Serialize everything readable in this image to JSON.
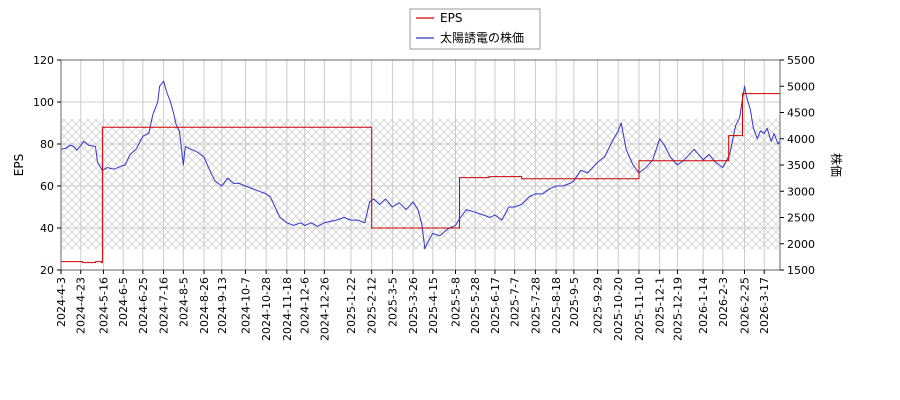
{
  "chart_data": {
    "type": "line",
    "title": "",
    "legend": {
      "placement": "top-center",
      "entries": [
        {
          "name": "EPS",
          "color": "#cc0000"
        },
        {
          "name": "太陽誘電の株価",
          "color": "#3333cc"
        }
      ]
    },
    "y_left": {
      "label": "EPS",
      "range": [
        20,
        120
      ],
      "ticks": [
        20,
        40,
        60,
        80,
        100,
        120
      ]
    },
    "y_right": {
      "label": "株価",
      "range": [
        1500,
        5500
      ],
      "ticks": [
        1500,
        2000,
        2500,
        3000,
        3500,
        4000,
        4500,
        5000,
        5500
      ]
    },
    "x_axis": {
      "range": [
        "2024-04-03",
        "2026-04-02"
      ],
      "tick_labels": [
        "2024-4-3",
        "2024-4-23",
        "2024-5-16",
        "2024-6-5",
        "2024-6-25",
        "2024-7-16",
        "2024-8-5",
        "2024-8-26",
        "2024-9-13",
        "2024-10-7",
        "2024-10-28",
        "2024-11-18",
        "2024-12-6",
        "2024-12-26",
        "2025-1-22",
        "2025-2-12",
        "2025-3-5",
        "2025-3-26",
        "2025-4-15",
        "2025-5-8",
        "2025-5-28",
        "2025-6-17",
        "2025-7-7",
        "2025-7-28",
        "2025-8-18",
        "2025-9-5",
        "2025-9-29",
        "2025-10-20",
        "2025-11-10",
        "2025-12-1",
        "2025-12-19",
        "2026-1-14",
        "2026-2-3",
        "2026-2-25",
        "2026-3-17"
      ],
      "tick_dates": [
        "2024-04-03",
        "2024-04-23",
        "2024-05-16",
        "2024-06-05",
        "2024-06-25",
        "2024-07-16",
        "2024-08-05",
        "2024-08-26",
        "2024-09-13",
        "2024-10-07",
        "2024-10-28",
        "2024-11-18",
        "2024-12-06",
        "2024-12-26",
        "2025-01-22",
        "2025-02-12",
        "2025-03-05",
        "2025-03-26",
        "2025-04-15",
        "2025-05-08",
        "2025-05-28",
        "2025-06-17",
        "2025-07-07",
        "2025-07-28",
        "2025-08-18",
        "2025-09-05",
        "2025-09-29",
        "2025-10-20",
        "2025-11-10",
        "2025-12-01",
        "2025-12-19",
        "2026-01-14",
        "2026-02-03",
        "2026-02-25",
        "2026-03-17"
      ]
    },
    "grid": true,
    "hatched_band": {
      "y_range": [
        30,
        92
      ]
    },
    "series": [
      {
        "name": "EPS",
        "axis": "left",
        "color": "#cc0000",
        "step": true,
        "points": [
          [
            "2024-04-03",
            24
          ],
          [
            "2024-04-23",
            24
          ],
          [
            "2024-04-25",
            23.5
          ],
          [
            "2024-05-02",
            23.5
          ],
          [
            "2024-05-08",
            24
          ],
          [
            "2024-05-14",
            23.5
          ],
          [
            "2024-05-15",
            88
          ],
          [
            "2024-11-05",
            88
          ],
          [
            "2025-02-12",
            40
          ],
          [
            "2025-05-09",
            40
          ],
          [
            "2025-05-12",
            64
          ],
          [
            "2025-06-10",
            64
          ],
          [
            "2025-06-11",
            64.5
          ],
          [
            "2025-07-10",
            64.5
          ],
          [
            "2025-07-14",
            63.5
          ],
          [
            "2025-08-05",
            63.5
          ],
          [
            "2025-11-07",
            63.5
          ],
          [
            "2025-11-10",
            72
          ],
          [
            "2026-02-06",
            72
          ],
          [
            "2026-02-09",
            84
          ],
          [
            "2026-02-20",
            84
          ],
          [
            "2026-02-23",
            104
          ],
          [
            "2026-02-24",
            104
          ],
          [
            "2026-02-25",
            104
          ],
          [
            "2026-03-10",
            104
          ],
          [
            "2026-04-02",
            104.5
          ]
        ]
      },
      {
        "name": "太陽誘電の株価",
        "axis": "right",
        "color": "#3333cc",
        "points": [
          [
            "2024-04-03",
            3800
          ],
          [
            "2024-04-08",
            3820
          ],
          [
            "2024-04-12",
            3880
          ],
          [
            "2024-04-16",
            3850
          ],
          [
            "2024-04-19",
            3780
          ],
          [
            "2024-04-23",
            3870
          ],
          [
            "2024-04-26",
            3950
          ],
          [
            "2024-05-01",
            3880
          ],
          [
            "2024-05-08",
            3850
          ],
          [
            "2024-05-10",
            3550
          ],
          [
            "2024-05-15",
            3400
          ],
          [
            "2024-05-20",
            3450
          ],
          [
            "2024-05-27",
            3420
          ],
          [
            "2024-06-03",
            3480
          ],
          [
            "2024-06-07",
            3500
          ],
          [
            "2024-06-12",
            3700
          ],
          [
            "2024-06-18",
            3800
          ],
          [
            "2024-06-25",
            4050
          ],
          [
            "2024-07-01",
            4100
          ],
          [
            "2024-07-05",
            4450
          ],
          [
            "2024-07-08",
            4600
          ],
          [
            "2024-07-10",
            4700
          ],
          [
            "2024-07-12",
            5000
          ],
          [
            "2024-07-16",
            5100
          ],
          [
            "2024-07-19",
            4900
          ],
          [
            "2024-07-23",
            4700
          ],
          [
            "2024-07-26",
            4500
          ],
          [
            "2024-07-29",
            4250
          ],
          [
            "2024-08-01",
            4150
          ],
          [
            "2024-08-05",
            3500
          ],
          [
            "2024-08-07",
            3850
          ],
          [
            "2024-08-13",
            3800
          ],
          [
            "2024-08-19",
            3750
          ],
          [
            "2024-08-26",
            3650
          ],
          [
            "2024-09-02",
            3350
          ],
          [
            "2024-09-06",
            3200
          ],
          [
            "2024-09-13",
            3100
          ],
          [
            "2024-09-19",
            3250
          ],
          [
            "2024-09-25",
            3150
          ],
          [
            "2024-10-01",
            3150
          ],
          [
            "2024-10-07",
            3100
          ],
          [
            "2024-10-14",
            3050
          ],
          [
            "2024-10-21",
            3000
          ],
          [
            "2024-10-28",
            2950
          ],
          [
            "2024-11-01",
            2900
          ],
          [
            "2024-11-06",
            2700
          ],
          [
            "2024-11-11",
            2500
          ],
          [
            "2024-11-18",
            2400
          ],
          [
            "2024-11-25",
            2350
          ],
          [
            "2024-12-02",
            2400
          ],
          [
            "2024-12-06",
            2350
          ],
          [
            "2024-12-13",
            2400
          ],
          [
            "2024-12-19",
            2330
          ],
          [
            "2024-12-26",
            2400
          ],
          [
            "2025-01-07",
            2450
          ],
          [
            "2025-01-15",
            2500
          ],
          [
            "2025-01-22",
            2450
          ],
          [
            "2025-01-29",
            2450
          ],
          [
            "2025-02-05",
            2400
          ],
          [
            "2025-02-10",
            2800
          ],
          [
            "2025-02-14",
            2850
          ],
          [
            "2025-02-20",
            2750
          ],
          [
            "2025-02-26",
            2850
          ],
          [
            "2025-03-05",
            2700
          ],
          [
            "2025-03-12",
            2780
          ],
          [
            "2025-03-19",
            2650
          ],
          [
            "2025-03-26",
            2800
          ],
          [
            "2025-03-31",
            2650
          ],
          [
            "2025-04-04",
            2350
          ],
          [
            "2025-04-07",
            1900
          ],
          [
            "2025-04-09",
            2000
          ],
          [
            "2025-04-15",
            2200
          ],
          [
            "2025-04-22",
            2150
          ],
          [
            "2025-04-28",
            2250
          ],
          [
            "2025-05-02",
            2300
          ],
          [
            "2025-05-08",
            2350
          ],
          [
            "2025-05-13",
            2500
          ],
          [
            "2025-05-19",
            2650
          ],
          [
            "2025-05-28",
            2600
          ],
          [
            "2025-06-05",
            2550
          ],
          [
            "2025-06-12",
            2500
          ],
          [
            "2025-06-17",
            2550
          ],
          [
            "2025-06-24",
            2450
          ],
          [
            "2025-07-01",
            2700
          ],
          [
            "2025-07-07",
            2700
          ],
          [
            "2025-07-14",
            2750
          ],
          [
            "2025-07-22",
            2900
          ],
          [
            "2025-07-28",
            2950
          ],
          [
            "2025-08-04",
            2950
          ],
          [
            "2025-08-12",
            3050
          ],
          [
            "2025-08-18",
            3100
          ],
          [
            "2025-08-25",
            3100
          ],
          [
            "2025-09-01",
            3150
          ],
          [
            "2025-09-05",
            3200
          ],
          [
            "2025-09-12",
            3400
          ],
          [
            "2025-09-19",
            3350
          ],
          [
            "2025-09-29",
            3550
          ],
          [
            "2025-10-06",
            3650
          ],
          [
            "2025-10-14",
            3950
          ],
          [
            "2025-10-20",
            4150
          ],
          [
            "2025-10-23",
            4300
          ],
          [
            "2025-10-28",
            3800
          ],
          [
            "2025-11-04",
            3500
          ],
          [
            "2025-11-10",
            3350
          ],
          [
            "2025-11-17",
            3450
          ],
          [
            "2025-11-24",
            3600
          ],
          [
            "2025-12-01",
            4000
          ],
          [
            "2025-12-05",
            3900
          ],
          [
            "2025-12-12",
            3650
          ],
          [
            "2025-12-19",
            3500
          ],
          [
            "2025-12-26",
            3600
          ],
          [
            "2026-01-05",
            3800
          ],
          [
            "2026-01-14",
            3600
          ],
          [
            "2026-01-20",
            3700
          ],
          [
            "2026-01-27",
            3550
          ],
          [
            "2026-02-03",
            3450
          ],
          [
            "2026-02-10",
            3700
          ],
          [
            "2026-02-16",
            4250
          ],
          [
            "2026-02-20",
            4400
          ],
          [
            "2026-02-23",
            4750
          ],
          [
            "2026-02-25",
            5000
          ],
          [
            "2026-02-27",
            4800
          ],
          [
            "2026-03-03",
            4550
          ],
          [
            "2026-03-06",
            4200
          ],
          [
            "2026-03-10",
            4000
          ],
          [
            "2026-03-13",
            4150
          ],
          [
            "2026-03-17",
            4100
          ],
          [
            "2026-03-20",
            4200
          ],
          [
            "2026-03-24",
            3950
          ],
          [
            "2026-03-27",
            4100
          ],
          [
            "2026-03-31",
            3900
          ],
          [
            "2026-04-02",
            3950
          ]
        ]
      }
    ]
  }
}
